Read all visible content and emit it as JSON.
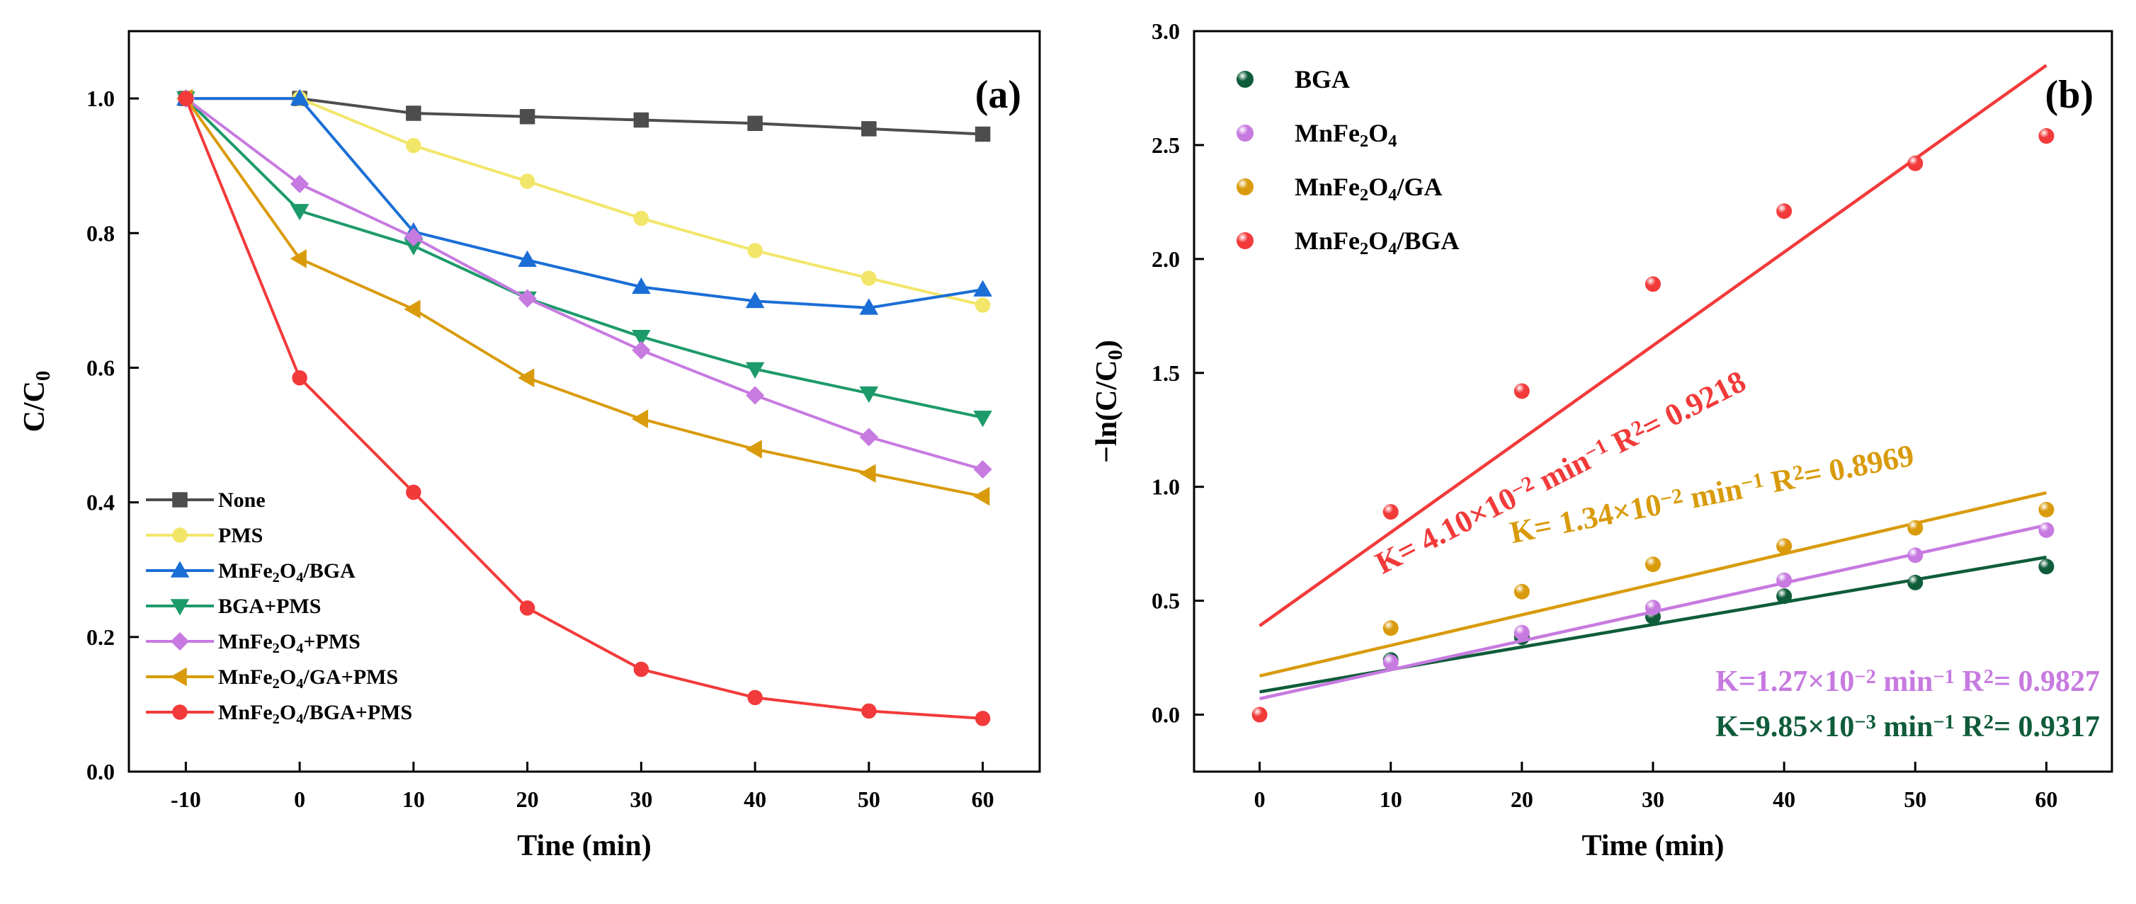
{
  "chart_data": [
    {
      "id": "a",
      "type": "line",
      "panel_label": "(a)",
      "xlabel": "Tine (min)",
      "ylabel": "C/C",
      "ylabel_sub": "0",
      "xlim": [
        -15,
        65
      ],
      "ylim": [
        0.0,
        1.1
      ],
      "xticks": [
        -10,
        0,
        10,
        20,
        30,
        40,
        50,
        60
      ],
      "yticks": [
        0.0,
        0.2,
        0.4,
        0.6,
        0.8,
        1.0
      ],
      "x": [
        -10,
        0,
        10,
        20,
        30,
        40,
        50,
        60
      ],
      "legend_position": "bottom-left",
      "series": [
        {
          "name": "None",
          "label_parts": [
            [
              "None",
              ""
            ]
          ],
          "color": "#4d4d4d",
          "marker": "square",
          "values": [
            1.0,
            1.0,
            0.978,
            0.973,
            0.968,
            0.963,
            0.955,
            0.947
          ]
        },
        {
          "name": "PMS",
          "label_parts": [
            [
              "PMS",
              ""
            ]
          ],
          "color": "#f2e66a",
          "marker": "circle",
          "values": [
            1.0,
            1.0,
            0.93,
            0.877,
            0.822,
            0.774,
            0.733,
            0.693
          ]
        },
        {
          "name": "MnFe2O4/BGA",
          "label_parts": [
            [
              "MnFe",
              ""
            ],
            [
              "2",
              "sub"
            ],
            [
              "O",
              ""
            ],
            [
              "4",
              "sub"
            ],
            [
              "/BGA",
              ""
            ]
          ],
          "color": "#1b6ed6",
          "marker": "triangle-up",
          "values": [
            1.0,
            1.0,
            0.802,
            0.76,
            0.72,
            0.699,
            0.689,
            0.716
          ]
        },
        {
          "name": "BGA+PMS",
          "label_parts": [
            [
              "BGA+PMS",
              ""
            ]
          ],
          "color": "#1d9a6a",
          "marker": "triangle-down",
          "values": [
            1.0,
            0.833,
            0.781,
            0.703,
            0.646,
            0.598,
            0.562,
            0.526
          ]
        },
        {
          "name": "MnFe2O4+PMS",
          "label_parts": [
            [
              "MnFe",
              ""
            ],
            [
              "2",
              "sub"
            ],
            [
              "O",
              ""
            ],
            [
              "4",
              "sub"
            ],
            [
              "+PMS",
              ""
            ]
          ],
          "color": "#c77ae0",
          "marker": "diamond",
          "values": [
            1.0,
            0.873,
            0.794,
            0.703,
            0.626,
            0.559,
            0.497,
            0.449
          ]
        },
        {
          "name": "MnFe2O4/GA+PMS",
          "label_parts": [
            [
              "MnFe",
              ""
            ],
            [
              "2",
              "sub"
            ],
            [
              "O",
              ""
            ],
            [
              "4",
              "sub"
            ],
            [
              "/GA+PMS",
              ""
            ]
          ],
          "color": "#d99b0c",
          "marker": "triangle-left",
          "values": [
            1.0,
            0.762,
            0.687,
            0.585,
            0.524,
            0.479,
            0.443,
            0.409
          ]
        },
        {
          "name": "MnFe2O4/BGA+PMS",
          "label_parts": [
            [
              "MnFe",
              ""
            ],
            [
              "2",
              "sub"
            ],
            [
              "O",
              ""
            ],
            [
              "4",
              "sub"
            ],
            [
              "/BGA+PMS",
              ""
            ]
          ],
          "color": "#f23a3a",
          "marker": "circle",
          "values": [
            1.0,
            0.585,
            0.415,
            0.243,
            0.152,
            0.11,
            0.09,
            0.079
          ]
        }
      ]
    },
    {
      "id": "b",
      "type": "scatter",
      "panel_label": "(b)",
      "xlabel": "Time (min)",
      "ylabel": "−ln(C/C",
      "ylabel_sub": "0",
      "ylabel_tail": ")",
      "xlim": [
        -5,
        65
      ],
      "ylim": [
        -0.25,
        3.0
      ],
      "xticks": [
        0,
        10,
        20,
        30,
        40,
        50,
        60
      ],
      "yticks": [
        0.0,
        0.5,
        1.0,
        1.5,
        2.0,
        2.5,
        3.0
      ],
      "x": [
        0,
        10,
        20,
        30,
        40,
        50,
        60
      ],
      "legend_position": "top-left",
      "series": [
        {
          "name": "BGA",
          "label_parts": [
            [
              "BGA",
              ""
            ]
          ],
          "color": "#0f5c3a",
          "marker": "circle",
          "values": [
            null,
            0.24,
            0.34,
            0.43,
            0.52,
            0.58,
            0.65
          ],
          "fit": {
            "intercept": 0.1,
            "slope": 0.00985
          },
          "annotation": {
            "parts": [
              [
                "K=9.85×10",
                ""
              ],
              [
                "−3",
                "sup"
              ],
              [
                " min",
                ""
              ],
              [
                "−1",
                "sup"
              ],
              [
                "    R",
                ""
              ],
              [
                "2",
                "sup"
              ],
              [
                "= 0.9317",
                ""
              ]
            ]
          }
        },
        {
          "name": "MnFe2O4",
          "label_parts": [
            [
              "MnFe",
              ""
            ],
            [
              "2",
              "sub"
            ],
            [
              "O",
              ""
            ],
            [
              "4",
              "sub"
            ]
          ],
          "color": "#c77ae0",
          "marker": "circle",
          "values": [
            null,
            0.23,
            0.36,
            0.47,
            0.59,
            0.7,
            0.81
          ],
          "fit": {
            "intercept": 0.07,
            "slope": 0.0127
          },
          "annotation": {
            "parts": [
              [
                "K=1.27×10",
                ""
              ],
              [
                "−2",
                "sup"
              ],
              [
                " min",
                ""
              ],
              [
                "−1",
                "sup"
              ],
              [
                "    R",
                ""
              ],
              [
                "2",
                "sup"
              ],
              [
                "= 0.9827",
                ""
              ]
            ]
          }
        },
        {
          "name": "MnFe2O4/GA",
          "label_parts": [
            [
              "MnFe",
              ""
            ],
            [
              "2",
              "sub"
            ],
            [
              "O",
              ""
            ],
            [
              "4",
              "sub"
            ],
            [
              "/GA",
              ""
            ]
          ],
          "color": "#d99b0c",
          "marker": "circle",
          "values": [
            null,
            0.38,
            0.54,
            0.66,
            0.74,
            0.82,
            0.9
          ],
          "fit": {
            "intercept": 0.17,
            "slope": 0.0134
          },
          "annotation": {
            "parts": [
              [
                "K= 1.34×10",
                ""
              ],
              [
                "−2",
                "sup"
              ],
              [
                " min",
                ""
              ],
              [
                "−1",
                "sup"
              ],
              [
                "  R",
                ""
              ],
              [
                "2",
                "sup"
              ],
              [
                "= 0.8969",
                ""
              ]
            ]
          }
        },
        {
          "name": "MnFe2O4/BGA",
          "label_parts": [
            [
              "MnFe",
              ""
            ],
            [
              "2",
              "sub"
            ],
            [
              "O",
              ""
            ],
            [
              "4",
              "sub"
            ],
            [
              "/BGA",
              ""
            ]
          ],
          "color": "#f23a3a",
          "marker": "circle",
          "values": [
            0.0,
            0.89,
            1.42,
            1.89,
            2.21,
            2.42,
            2.54
          ],
          "fit": {
            "intercept": 0.39,
            "slope": 0.041
          },
          "annotation": {
            "parts": [
              [
                "K= 4.10×10",
                ""
              ],
              [
                "−2",
                "sup"
              ],
              [
                " min",
                ""
              ],
              [
                "−1",
                "sup"
              ],
              [
                "   R",
                ""
              ],
              [
                "2",
                "sup"
              ],
              [
                "= 0.9218",
                ""
              ]
            ]
          }
        }
      ]
    }
  ]
}
